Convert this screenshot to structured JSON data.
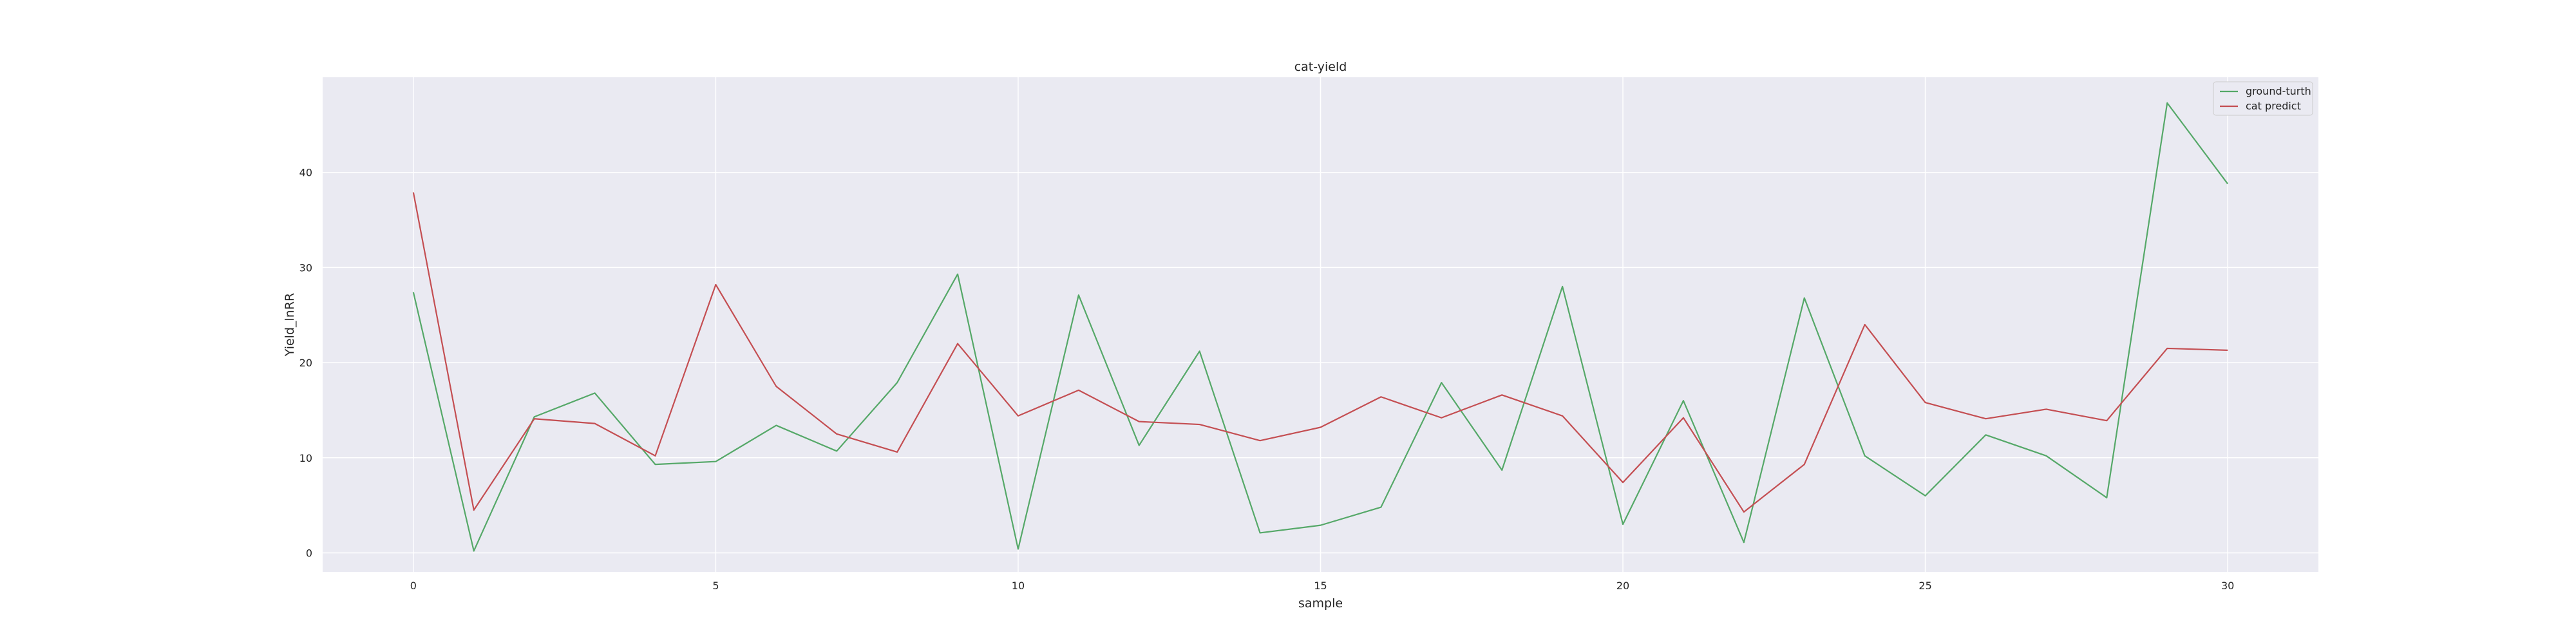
{
  "chart_data": {
    "type": "line",
    "title": "cat-yield",
    "xlabel": "sample",
    "ylabel": "Yield_lnRR",
    "xlim": [
      -1.5,
      31.5
    ],
    "ylim": [
      -2,
      50
    ],
    "x_ticks": [
      0,
      5,
      10,
      15,
      20,
      25,
      30
    ],
    "y_ticks": [
      0,
      10,
      20,
      30,
      40
    ],
    "grid": true,
    "legend_position": "top-right",
    "x": [
      0,
      1,
      2,
      3,
      4,
      5,
      6,
      7,
      8,
      9,
      10,
      11,
      12,
      13,
      14,
      15,
      16,
      17,
      18,
      19,
      20,
      21,
      22,
      23,
      24,
      25,
      26,
      27,
      28,
      29,
      30
    ],
    "series": [
      {
        "name": "ground-turth",
        "color": "#55a868",
        "values": [
          27.4,
          0.2,
          14.3,
          16.8,
          9.3,
          9.6,
          13.4,
          10.7,
          17.9,
          29.3,
          0.4,
          27.1,
          11.3,
          21.2,
          2.1,
          2.9,
          4.8,
          17.9,
          8.7,
          28.0,
          3.0,
          16.0,
          1.1,
          26.8,
          10.2,
          6.0,
          12.4,
          10.2,
          5.8,
          47.3,
          38.8
        ]
      },
      {
        "name": "cat predict",
        "color": "#c44e52",
        "values": [
          37.9,
          4.5,
          14.1,
          13.6,
          10.2,
          28.2,
          17.5,
          12.5,
          10.6,
          22.0,
          14.4,
          17.1,
          13.8,
          13.5,
          11.8,
          13.2,
          16.4,
          14.2,
          16.6,
          14.4,
          7.4,
          14.2,
          4.3,
          9.3,
          24.0,
          15.8,
          14.1,
          15.1,
          13.9,
          21.5,
          21.3
        ]
      }
    ]
  },
  "colors": {
    "plot_background": "#eaeaf2",
    "grid": "#ffffff"
  }
}
